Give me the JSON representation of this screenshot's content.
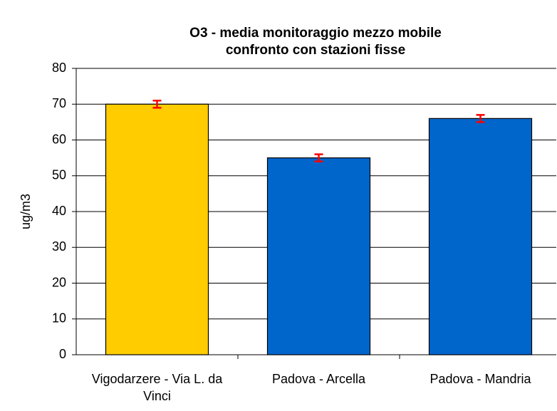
{
  "chart_data": {
    "type": "bar",
    "title": [
      "O3 - media monitoraggio mezzo mobile",
      "confronto con stazioni fisse"
    ],
    "ylabel": "ug/m3",
    "categories": [
      "Vigodarzere - Via L. da Vinci",
      "Padova - Arcella",
      "Padova - Mandria"
    ],
    "values": [
      70,
      55,
      66
    ],
    "errors": [
      1,
      1,
      1
    ],
    "colors": [
      "#ffcc00",
      "#0066cc",
      "#0066cc"
    ],
    "error_color": "#ff0000",
    "ylim": [
      0,
      80
    ],
    "yticks": [
      0,
      10,
      20,
      30,
      40,
      50,
      60,
      70,
      80
    ],
    "grid": true
  }
}
